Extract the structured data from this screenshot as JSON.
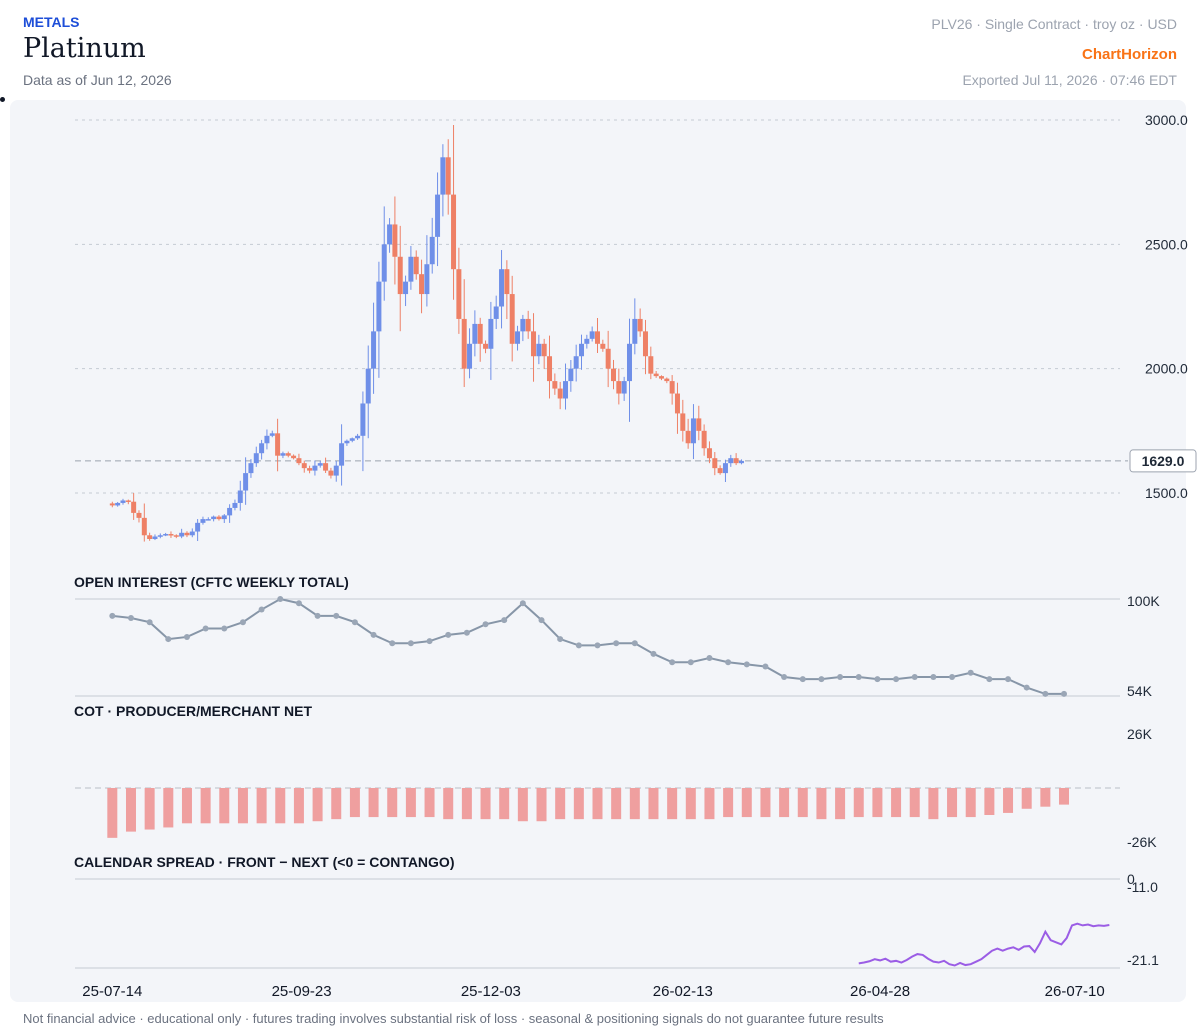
{
  "header": {
    "category": "METALS",
    "title": "Platinum",
    "as_of": "Data as of Jun 12, 2026",
    "contract": "PLV26 · Single Contract · troy oz · USD",
    "brand": "ChartHorizon",
    "exported": "Exported Jul 11, 2026 · 07:46 EDT"
  },
  "footer": "Not financial advice · educational only · futures trading involves substantial risk of loss · seasonal & positioning signals do not guarantee future results",
  "colors": {
    "up": "#6f8fe8",
    "down": "#ee8066",
    "oi_line": "#8796a8",
    "cot_bar": "#ef9f9f",
    "spread_line": "#9b5de5",
    "panel_bg": "#f3f5f9",
    "brand": "#f97316",
    "category": "#1d4ed8"
  },
  "chart_data": [
    {
      "type": "candlestick",
      "title": "",
      "yticks": [
        "3000.0",
        "2500.0",
        "2000.0",
        "1500.0"
      ],
      "ylim": [
        1250,
        3000
      ],
      "last_price": 1629.0,
      "last_price_label": "1629.0",
      "xticks": [
        "25-07-14",
        "25-09-23",
        "25-12-03",
        "26-02-13",
        "26-04-28",
        "26-07-10"
      ],
      "xrange": [
        "2025-06-30",
        "2026-07-27"
      ],
      "close_series": {
        "start": "2025-07-14",
        "step_days": 2,
        "values": [
          1450,
          1460,
          1470,
          1465,
          1420,
          1400,
          1330,
          1315,
          1325,
          1330,
          1335,
          1330,
          1325,
          1340,
          1330,
          1345,
          1380,
          1395,
          1395,
          1405,
          1395,
          1410,
          1440,
          1460,
          1510,
          1580,
          1620,
          1660,
          1700,
          1730,
          1740,
          1650,
          1660,
          1650,
          1640,
          1620,
          1600,
          1590,
          1610,
          1620,
          1590,
          1570,
          1610,
          1700,
          1710,
          1720,
          1730,
          1860,
          2000,
          2150,
          2350,
          2500,
          2580,
          2450,
          2300,
          2350,
          2450,
          2380,
          2300,
          2420,
          2530,
          2700,
          2850,
          2700,
          2400,
          2200,
          2000,
          2100,
          2180,
          2100,
          2080,
          2200,
          2250,
          2400,
          2300,
          2100,
          2150,
          2200,
          2150,
          2050,
          2100,
          2050,
          1950,
          1920,
          1880,
          1950,
          2000,
          2050,
          2100,
          2120,
          2150,
          2100,
          2080,
          2000,
          1950,
          1900,
          1950,
          2100,
          2200,
          2150,
          2050,
          1980,
          1970,
          1960,
          1950,
          1900,
          1820,
          1750,
          1700,
          1800,
          1750,
          1680,
          1640,
          1600,
          1580,
          1620,
          1640,
          1620,
          1629
        ]
      }
    },
    {
      "type": "line",
      "title": "OPEN INTEREST (CFTC WEEKLY TOTAL)",
      "yticks": [
        "100K",
        "54K"
      ],
      "ylim": [
        54,
        100
      ],
      "unit": "K",
      "start": "2025-07-14",
      "step_days": 7,
      "values": [
        92,
        91,
        89,
        81,
        82,
        86,
        86,
        89,
        95,
        100,
        98,
        92,
        92,
        89,
        83,
        79,
        79,
        80,
        83,
        84,
        88,
        90,
        98,
        90,
        81,
        78,
        78,
        79,
        79,
        74,
        70,
        70,
        72,
        70,
        69,
        68,
        63,
        62,
        62,
        63,
        63,
        62,
        62,
        63,
        63,
        63,
        65,
        62,
        62,
        58,
        55,
        55
      ]
    },
    {
      "type": "bar",
      "title": "COT · PRODUCER/MERCHANT NET",
      "yticks": [
        "26K",
        "-26K"
      ],
      "ylim": [
        -26,
        26
      ],
      "unit": "K",
      "start": "2025-07-14",
      "step_days": 7,
      "values": [
        -24,
        -21,
        -20,
        -19,
        -17,
        -17,
        -17,
        -17,
        -17,
        -17,
        -17,
        -16,
        -15,
        -14,
        -14,
        -14,
        -14,
        -14,
        -15,
        -15,
        -15,
        -15,
        -16,
        -16,
        -15,
        -15,
        -15,
        -15,
        -15,
        -15,
        -15,
        -15,
        -15,
        -14,
        -14,
        -14,
        -14,
        -14,
        -15,
        -15,
        -14,
        -14,
        -14,
        -14,
        -15,
        -14,
        -14,
        -13,
        -12,
        -10,
        -9,
        -8
      ]
    },
    {
      "type": "line",
      "title": "CALENDAR SPREAD · FRONT − NEXT (<0 = CONTANGO)",
      "yticks": [
        "0",
        "-11.0",
        "-21.1"
      ],
      "ylim": [
        -21.1,
        0
      ],
      "start": "2026-04-20",
      "step_days": 2,
      "values": [
        -20.0,
        -19.8,
        -19.5,
        -19.0,
        -19.3,
        -18.9,
        -19.6,
        -19.4,
        -19.8,
        -19.2,
        -18.4,
        -17.8,
        -18.0,
        -18.9,
        -19.6,
        -19.8,
        -19.4,
        -20.2,
        -20.5,
        -19.9,
        -20.4,
        -20.2,
        -19.6,
        -19.0,
        -18.0,
        -17.0,
        -16.5,
        -17.0,
        -16.5,
        -16.2,
        -16.8,
        -16.0,
        -15.9,
        -17.3,
        -15.2,
        -12.5,
        -14.5,
        -15.0,
        -15.5,
        -14.0,
        -11.0,
        -10.6,
        -11.0,
        -10.8,
        -11.2,
        -11.0,
        -11.1,
        -10.9
      ]
    }
  ]
}
